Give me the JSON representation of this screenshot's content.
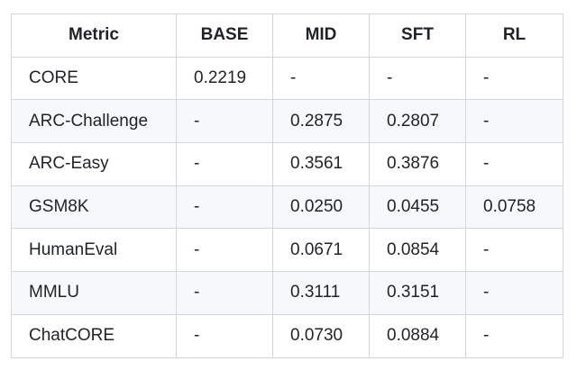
{
  "table": {
    "header": [
      "Metric",
      "BASE",
      "MID",
      "SFT",
      "RL"
    ],
    "rows": [
      [
        "CORE",
        "0.2219",
        "-",
        "-",
        "-"
      ],
      [
        "ARC-Challenge",
        "-",
        "0.2875",
        "0.2807",
        "-"
      ],
      [
        "ARC-Easy",
        "-",
        "0.3561",
        "0.3876",
        "-"
      ],
      [
        "GSM8K",
        "-",
        "0.0250",
        "0.0455",
        "0.0758"
      ],
      [
        "HumanEval",
        "-",
        "0.0671",
        "0.0854",
        "-"
      ],
      [
        "MMLU",
        "-",
        "0.3111",
        "0.3151",
        "-"
      ],
      [
        "ChatCORE",
        "-",
        "0.0730",
        "0.0884",
        "-"
      ]
    ]
  }
}
